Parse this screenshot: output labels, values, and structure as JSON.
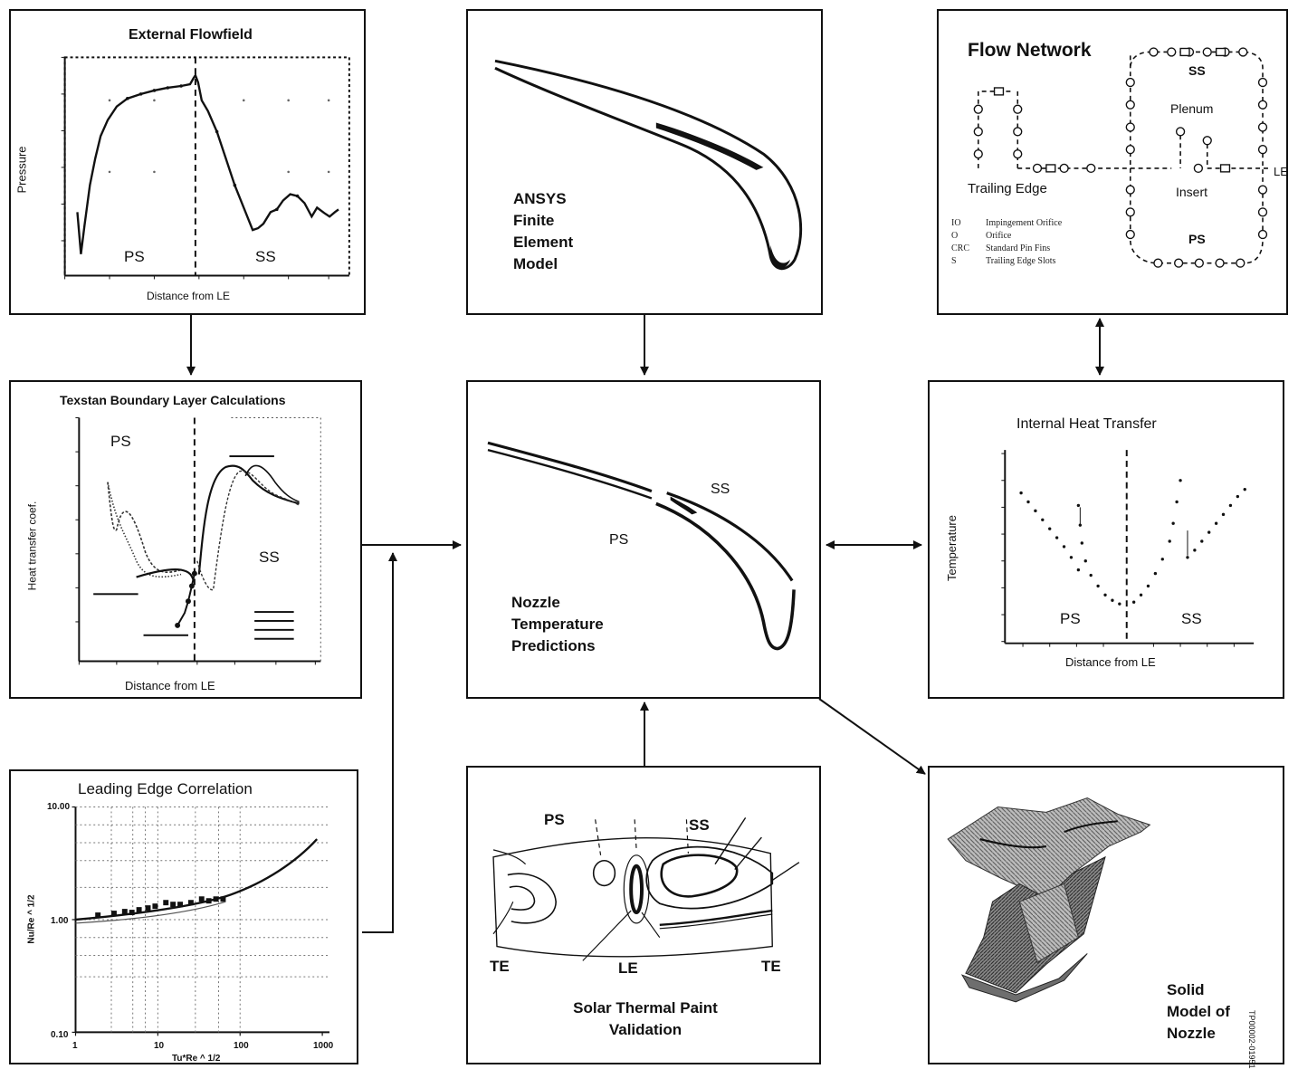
{
  "panels": {
    "external_flowfield": {
      "title": "External Flowfield",
      "ylabel": "Pressure",
      "xlabel": "Distance from LE",
      "ps": "PS",
      "ss": "SS"
    },
    "fea_model": {
      "lines": [
        "ANSYS",
        "Finite",
        "Element",
        "Model"
      ]
    },
    "flow_network": {
      "title": "Flow Network",
      "ss": "SS",
      "plenum": "Plenum",
      "le": "LE",
      "trailing_edge": "Trailing Edge",
      "insert": "Insert",
      "ps": "PS",
      "legend": [
        {
          "key": "IO",
          "text": "Impingement Orifice"
        },
        {
          "key": "O",
          "text": "Orifice"
        },
        {
          "key": "CRC",
          "text": "Standard Pin Fins"
        },
        {
          "key": "S",
          "text": "Trailing Edge Slots"
        }
      ]
    },
    "texstan": {
      "title": "Texstan Boundary Layer Calculations",
      "ylabel": "Heat transfer coef.",
      "xlabel": "Distance from LE",
      "ps": "PS",
      "ss": "SS"
    },
    "nozzle_temp": {
      "lines": [
        "Nozzle",
        "Temperature",
        "Predictions"
      ],
      "ps": "PS",
      "ss": "SS"
    },
    "internal_heat": {
      "title": "Internal Heat Transfer",
      "ylabel": "Temperature",
      "xlabel": "Distance from LE",
      "ps": "PS",
      "ss": "SS"
    },
    "leading_edge": {
      "title": "Leading Edge Correlation",
      "ylabel": "Nu/Re ^ 1/2",
      "xlabel": "Tu*Re ^ 1/2",
      "yticks": [
        "10.00",
        "1.00",
        "0.10"
      ],
      "xticks": [
        "1",
        "10",
        "100",
        "1000"
      ]
    },
    "paint": {
      "lines": [
        "Solar Thermal Paint",
        "Validation"
      ],
      "ps": "PS",
      "ss": "SS",
      "te_left": "TE",
      "le": "LE",
      "te_right": "TE"
    },
    "solid": {
      "lines": [
        "Solid",
        "Model of",
        "Nozzle"
      ]
    }
  },
  "side_id": "TP00002-01951"
}
